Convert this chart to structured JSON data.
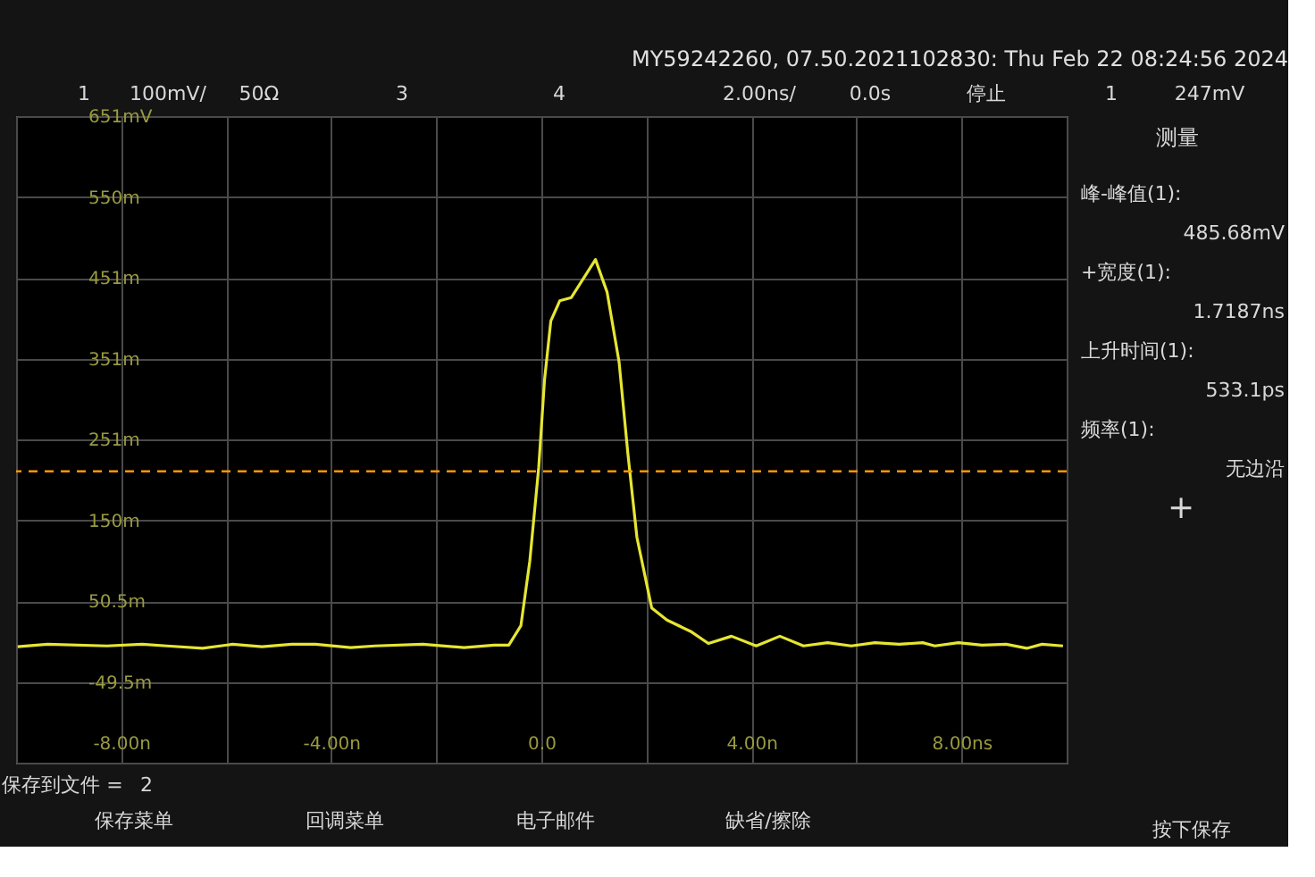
{
  "chart_data": [
    {
      "type": "line",
      "title": "MY59242260, 07.50.2021102830: Thu Feb 22 08:24:56 2024",
      "series": [
        {
          "color": "#e6e632",
          "x": [
            -9.97,
            -9.4,
            -8.27,
            -7.6,
            -7.13,
            -6.45,
            -5.88,
            -5.32,
            -4.75,
            -4.3,
            -3.63,
            -3.17,
            -2.26,
            -1.47,
            -0.9,
            -0.62,
            -0.39,
            -0.22,
            -0.05,
            0.06,
            0.18,
            0.35,
            0.57,
            1.03,
            1.25,
            1.48,
            1.65,
            1.82,
            2.1,
            2.39,
            2.84,
            3.18,
            3.62,
            4.09,
            4.54,
            4.99,
            5.45,
            5.9,
            6.35,
            6.81,
            7.26,
            7.49,
            7.94,
            8.39,
            8.85,
            9.24,
            9.53,
            9.93
          ],
          "values": [
            -6,
            -3,
            -5,
            -3,
            -5,
            -8,
            -3,
            -6,
            -3,
            -3,
            -7,
            -5,
            -3,
            -7,
            -4,
            -4,
            20,
            100,
            216,
            324,
            397,
            422,
            426,
            473,
            433,
            346,
            231,
            129,
            42,
            27,
            13,
            -2,
            7,
            -5,
            7,
            -5,
            -1,
            -5,
            -1,
            -3,
            -1,
            -5,
            -1,
            -4,
            -3,
            -8,
            -3,
            -5
          ]
        }
      ],
      "xlim": [
        -10,
        10
      ],
      "xticks": [
        {
          "value": -10,
          "label": null
        },
        {
          "value": -8,
          "label": "-8.00n"
        },
        {
          "value": -6,
          "label": null
        },
        {
          "value": -4,
          "label": "-4.00n"
        },
        {
          "value": -2,
          "label": null
        },
        {
          "value": 0,
          "label": "0.0"
        },
        {
          "value": 2,
          "label": null
        },
        {
          "value": 4,
          "label": "4.00n"
        },
        {
          "value": 6,
          "label": null
        },
        {
          "value": 8,
          "label": "8.00ns"
        },
        {
          "value": 10,
          "label": null
        }
      ],
      "ylim": [
        -149.5,
        650.5
      ],
      "yticks": [
        {
          "value": -149.5,
          "label": null
        },
        {
          "value": -49.5,
          "label": "-49.5m"
        },
        {
          "value": 50.5,
          "label": "50.5m"
        },
        {
          "value": 150.5,
          "label": "150m"
        },
        {
          "value": 250.5,
          "label": "251m"
        },
        {
          "value": 350.5,
          "label": "351m"
        },
        {
          "value": 450.5,
          "label": "451m"
        },
        {
          "value": 550.5,
          "label": "550m"
        },
        {
          "value": 650.5,
          "label": "651mV"
        }
      ],
      "grid": true,
      "marker": "none",
      "line_style": "solid",
      "ref_lines": [
        {
          "axis": "y",
          "value": 211,
          "color": "#ff9900",
          "line_style": "dashed"
        }
      ],
      "annotations": [
        "1",
        "100mV/",
        "50Ω",
        "3",
        "4",
        "2.00ns/",
        "0.0s",
        "停止",
        "1",
        "247mV",
        "保存到文件 =",
        "2",
        "保存菜单",
        "回调菜单",
        "电子邮件",
        "缺省/擦除",
        "按下保存"
      ]
    },
    {
      "type": "other",
      "title": "测量",
      "annotations": [
        "峰-峰值(1):",
        "485.68mV",
        "+宽度(1):",
        "1.7187ns",
        "上升时间(1):",
        "533.1ps",
        "频率(1):",
        "无边沿",
        "+"
      ]
    }
  ]
}
